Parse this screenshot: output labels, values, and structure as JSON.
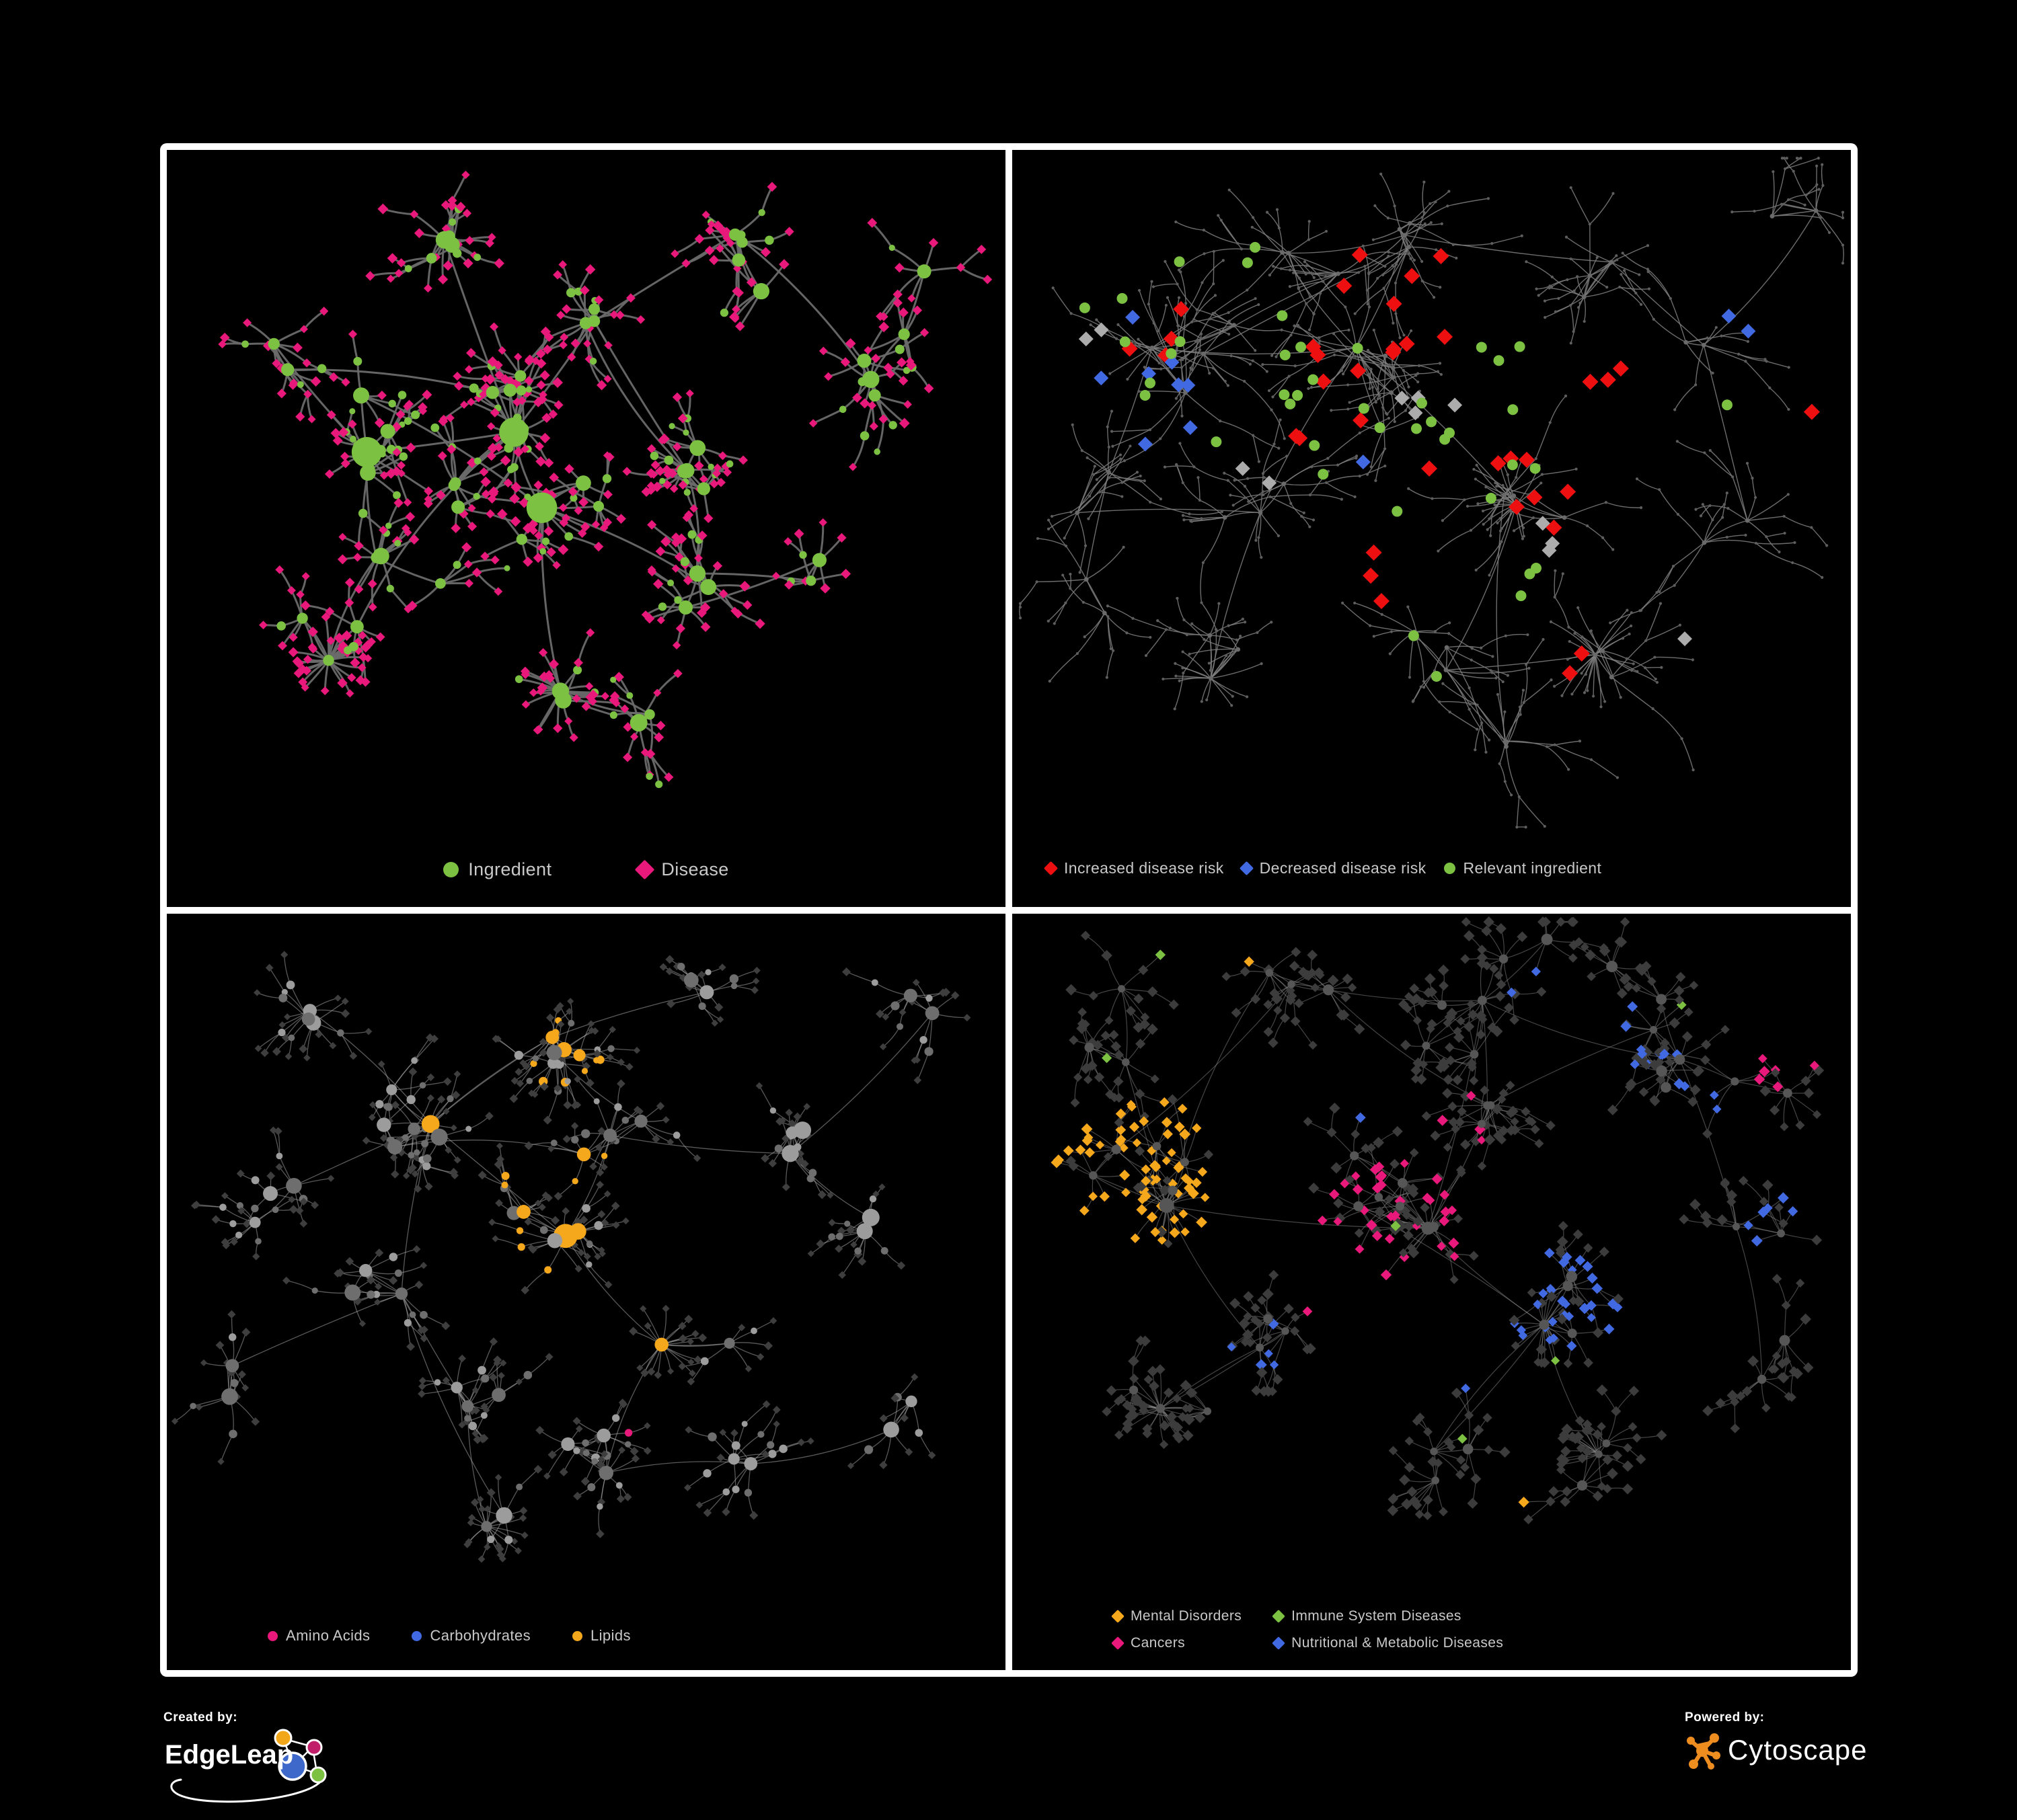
{
  "panels": [
    {
      "id": "ingredient-disease",
      "legend": [
        {
          "label": "Ingredient",
          "shape": "circle",
          "color": "#7CC142"
        },
        {
          "label": "Disease",
          "shape": "diamond",
          "color": "#E9187B"
        }
      ],
      "net": {
        "seed": 20240,
        "style": "bipartite",
        "edge": {
          "color": "#6A6A6A",
          "width": 3,
          "opacity": 0.95
        },
        "palette": {
          "hub": "#7CC142",
          "leaf": "#E9187B"
        },
        "clusters": [
          [
            0.42,
            0.36,
            6,
            1
          ],
          [
            0.24,
            0.4,
            5,
            1
          ],
          [
            0.33,
            0.13,
            4,
            0
          ],
          [
            0.52,
            0.22,
            3,
            0
          ],
          [
            0.7,
            0.16,
            4,
            0
          ],
          [
            0.82,
            0.32,
            3,
            0
          ],
          [
            0.64,
            0.44,
            4,
            0
          ],
          [
            0.49,
            0.52,
            4,
            1
          ],
          [
            0.29,
            0.6,
            3,
            0
          ],
          [
            0.2,
            0.72,
            3,
            2
          ],
          [
            0.47,
            0.78,
            2,
            2
          ],
          [
            0.62,
            0.66,
            3,
            0
          ],
          [
            0.77,
            0.6,
            2,
            0
          ],
          [
            0.55,
            0.88,
            2,
            0
          ],
          [
            0.12,
            0.27,
            2,
            0
          ],
          [
            0.88,
            0.2,
            2,
            0
          ],
          [
            0.35,
            0.47,
            3,
            0
          ]
        ]
      }
    },
    {
      "id": "disease-risk",
      "legend": [
        {
          "label": "Increased disease risk",
          "shape": "diamond",
          "color": "#EE1010"
        },
        {
          "label": "Decreased disease risk",
          "shape": "diamond",
          "color": "#4169E1"
        },
        {
          "label": "Relevant ingredient",
          "shape": "circle",
          "color": "#7CC142"
        }
      ],
      "net": {
        "seed": 777,
        "style": "muted",
        "edge": {
          "color": "#7F7F7F",
          "width": 1.4,
          "opacity": 0.85
        },
        "palette": {
          "node": "#5E5E5E",
          "hub": "#6A6A6A"
        },
        "clusters": [
          [
            0.2,
            0.3,
            5,
            1
          ],
          [
            0.44,
            0.33,
            6,
            1
          ],
          [
            0.6,
            0.5,
            4,
            2
          ],
          [
            0.46,
            0.11,
            4,
            0
          ],
          [
            0.7,
            0.2,
            3,
            0
          ],
          [
            0.86,
            0.27,
            2,
            0
          ],
          [
            0.3,
            0.55,
            3,
            0
          ],
          [
            0.25,
            0.76,
            3,
            2
          ],
          [
            0.5,
            0.7,
            3,
            0
          ],
          [
            0.68,
            0.77,
            3,
            2
          ],
          [
            0.85,
            0.55,
            2,
            0
          ],
          [
            0.1,
            0.5,
            2,
            0
          ],
          [
            0.6,
            0.89,
            2,
            0
          ],
          [
            0.33,
            0.15,
            3,
            0
          ],
          [
            0.9,
            0.1,
            2,
            0
          ],
          [
            0.13,
            0.68,
            2,
            0
          ]
        ],
        "highlights": [
          {
            "shape": "diamond",
            "color": "#EE1010",
            "half": 12,
            "spots": [
              [
                0.45,
                0.3,
                0.1,
                12
              ],
              [
                0.6,
                0.48,
                0.07,
                7
              ],
              [
                0.2,
                0.28,
                0.05,
                4
              ],
              [
                0.47,
                0.18,
                0.04,
                3
              ],
              [
                0.7,
                0.34,
                0.04,
                3
              ],
              [
                0.67,
                0.74,
                0.035,
                2
              ],
              [
                0.44,
                0.6,
                0.04,
                3
              ],
              [
                0.93,
                0.37,
                0.02,
                1
              ],
              [
                0.35,
                0.4,
                0.03,
                2
              ]
            ]
          },
          {
            "shape": "diamond",
            "color": "#4169E1",
            "half": 11,
            "spots": [
              [
                0.16,
                0.31,
                0.05,
                6
              ],
              [
                0.875,
                0.245,
                0.022,
                2
              ],
              [
                0.185,
                0.42,
                0.025,
                2
              ],
              [
                0.42,
                0.46,
                0.02,
                1
              ]
            ]
          },
          {
            "shape": "diamond",
            "color": "#ACACAC",
            "half": 11,
            "spots": [
              [
                0.115,
                0.27,
                0.04,
                2
              ],
              [
                0.5,
                0.36,
                0.05,
                4
              ],
              [
                0.625,
                0.595,
                0.04,
                3
              ],
              [
                0.3,
                0.48,
                0.03,
                2
              ],
              [
                0.79,
                0.73,
                0.015,
                1
              ]
            ]
          },
          {
            "shape": "circle",
            "color": "#7CC142",
            "half": 8,
            "spots": [
              [
                0.35,
                0.3,
                0.15,
                14
              ],
              [
                0.55,
                0.42,
                0.1,
                10
              ],
              [
                0.2,
                0.35,
                0.07,
                5
              ],
              [
                0.625,
                0.625,
                0.03,
                3
              ],
              [
                0.46,
                0.7,
                0.05,
                2
              ],
              [
                0.11,
                0.21,
                0.035,
                2
              ],
              [
                0.84,
                0.35,
                0.02,
                1
              ],
              [
                0.3,
                0.14,
                0.03,
                2
              ],
              [
                0.57,
                0.3,
                0.04,
                3
              ]
            ]
          }
        ]
      }
    },
    {
      "id": "ingredient-classes",
      "legend": [
        {
          "label": "Amino Acids",
          "shape": "circle",
          "color": "#E9187B"
        },
        {
          "label": "Carbohydrates",
          "shape": "circle",
          "color": "#4169E1"
        },
        {
          "label": "Lipids",
          "shape": "circle",
          "color": "#F6A81C"
        }
      ],
      "net": {
        "seed": 4242,
        "style": "classes-circles",
        "edge": {
          "color": "#B2B2B2",
          "width": 1.3,
          "opacity": 0.5
        },
        "palette": {
          "leaf": "#3E3E3E",
          "grayA": "#9C9C9C",
          "grayB": "#6E6E6E"
        },
        "regions": [
          {
            "color": "#F6A81C",
            "spots": [
              [
                0.43,
                0.2,
                0.09,
                0.55
              ],
              [
                0.43,
                0.43,
                0.1,
                0.5
              ],
              [
                0.62,
                0.63,
                0.05,
                0.85
              ],
              [
                0.3,
                0.33,
                0.05,
                0.2
              ],
              [
                0.74,
                0.5,
                0.04,
                0.35
              ],
              [
                0.55,
                0.55,
                0.22,
                0.07
              ],
              [
                0.28,
                0.08,
                0.03,
                0.4
              ],
              [
                0.07,
                0.62,
                0.03,
                0.4
              ]
            ]
          },
          {
            "color": "#4169E1",
            "spots": [
              [
                0.47,
                0.145,
                0.05,
                0.4
              ],
              [
                0.12,
                0.33,
                0.018,
                0.7
              ],
              [
                0.82,
                0.6,
                0.025,
                0.6
              ],
              [
                0.415,
                0.42,
                0.035,
                0.22
              ],
              [
                0.35,
                0.12,
                0.02,
                0.3
              ]
            ]
          },
          {
            "color": "#E9187B",
            "spots": [
              [
                0.3,
                0.72,
                0.025,
                0.8
              ],
              [
                0.52,
                0.62,
                0.028,
                0.6
              ],
              [
                0.56,
                0.76,
                0.035,
                0.55
              ],
              [
                0.85,
                0.73,
                0.028,
                0.6
              ],
              [
                0.9,
                0.295,
                0.025,
                0.6
              ],
              [
                0.055,
                0.45,
                0.02,
                0.7
              ],
              [
                0.25,
                0.2,
                0.02,
                0.35
              ],
              [
                0.35,
                0.055,
                0.02,
                0.6
              ],
              [
                0.95,
                0.14,
                0.02,
                0.55
              ],
              [
                0.65,
                0.88,
                0.025,
                0.45
              ],
              [
                0.45,
                0.295,
                0.03,
                0.18
              ],
              [
                0.12,
                0.18,
                0.02,
                0.3
              ]
            ]
          }
        ],
        "clusters": [
          [
            0.3,
            0.3,
            6,
            1
          ],
          [
            0.44,
            0.19,
            5,
            0
          ],
          [
            0.44,
            0.44,
            5,
            1
          ],
          [
            0.62,
            0.63,
            2,
            2
          ],
          [
            0.25,
            0.52,
            3,
            0
          ],
          [
            0.14,
            0.45,
            3,
            0
          ],
          [
            0.56,
            0.33,
            3,
            0
          ],
          [
            0.74,
            0.34,
            3,
            0
          ],
          [
            0.88,
            0.42,
            2,
            0
          ],
          [
            0.35,
            0.7,
            3,
            0
          ],
          [
            0.52,
            0.78,
            3,
            0
          ],
          [
            0.42,
            0.88,
            2,
            2
          ],
          [
            0.68,
            0.8,
            2,
            0
          ],
          [
            0.85,
            0.72,
            2,
            0
          ],
          [
            0.2,
            0.12,
            3,
            0
          ],
          [
            0.65,
            0.1,
            2,
            0
          ],
          [
            0.9,
            0.15,
            2,
            0
          ],
          [
            0.08,
            0.7,
            2,
            0
          ]
        ]
      }
    },
    {
      "id": "disease-classes",
      "legend": [
        {
          "label": "Mental Disorders",
          "shape": "diamond",
          "color": "#F6A81C"
        },
        {
          "label": "Immune System Diseases",
          "shape": "diamond",
          "color": "#7CC142"
        },
        {
          "label": "Cancers",
          "shape": "diamond",
          "color": "#E9187B"
        },
        {
          "label": "Nutritional & Metabolic Diseases",
          "shape": "diamond",
          "color": "#4169E1"
        }
      ],
      "net": {
        "seed": 909,
        "style": "classes-diamonds",
        "edge": {
          "color": "#9A9A9A",
          "width": 1.2,
          "opacity": 0.45
        },
        "palette": {
          "hub": "#565656",
          "leaf": "#3C3C3C"
        },
        "regions": [
          {
            "color": "#F6A81C",
            "spots": [
              [
                0.16,
                0.37,
                0.11,
                0.8
              ],
              [
                0.27,
                0.25,
                0.06,
                0.3
              ],
              [
                0.085,
                0.5,
                0.04,
                0.45
              ],
              [
                0.3,
                0.075,
                0.035,
                0.35
              ],
              [
                0.6,
                0.87,
                0.025,
                0.5
              ],
              [
                0.78,
                0.62,
                0.018,
                0.55
              ],
              [
                0.45,
                0.04,
                0.02,
                0.4
              ]
            ]
          },
          {
            "color": "#E9187B",
            "spots": [
              [
                0.46,
                0.45,
                0.1,
                0.55
              ],
              [
                0.385,
                0.55,
                0.05,
                0.4
              ],
              [
                0.35,
                0.785,
                0.035,
                0.5
              ],
              [
                0.92,
                0.215,
                0.04,
                0.65
              ],
              [
                0.55,
                0.3,
                0.045,
                0.3
              ],
              [
                0.74,
                0.9,
                0.03,
                0.5
              ],
              [
                0.25,
                0.88,
                0.025,
                0.45
              ],
              [
                0.6,
                0.18,
                0.025,
                0.3
              ]
            ]
          },
          {
            "color": "#4169E1",
            "spots": [
              [
                0.66,
                0.56,
                0.08,
                0.65
              ],
              [
                0.8,
                0.2,
                0.1,
                0.42
              ],
              [
                0.3,
                0.635,
                0.04,
                0.5
              ],
              [
                0.62,
                0.065,
                0.05,
                0.45
              ],
              [
                0.9,
                0.45,
                0.05,
                0.5
              ],
              [
                0.24,
                0.15,
                0.05,
                0.3
              ],
              [
                0.55,
                0.69,
                0.035,
                0.35
              ],
              [
                0.92,
                0.075,
                0.03,
                0.5
              ],
              [
                0.4,
                0.3,
                0.05,
                0.15
              ],
              [
                0.1,
                0.85,
                0.03,
                0.4
              ]
            ]
          },
          {
            "color": "#7CC142",
            "spots": [
              [
                0.5,
                0.45,
                0.6,
                0.012
              ]
            ]
          }
        ],
        "clusters": [
          [
            0.16,
            0.37,
            6,
            3
          ],
          [
            0.45,
            0.42,
            7,
            1
          ],
          [
            0.5,
            0.15,
            4,
            0
          ],
          [
            0.65,
            0.55,
            4,
            2
          ],
          [
            0.8,
            0.2,
            4,
            0
          ],
          [
            0.3,
            0.62,
            3,
            0
          ],
          [
            0.2,
            0.74,
            3,
            2
          ],
          [
            0.5,
            0.8,
            3,
            0
          ],
          [
            0.7,
            0.78,
            3,
            2
          ],
          [
            0.9,
            0.45,
            2,
            0
          ],
          [
            0.92,
            0.23,
            2,
            0
          ],
          [
            0.1,
            0.15,
            3,
            0
          ],
          [
            0.35,
            0.08,
            3,
            0
          ],
          [
            0.62,
            0.07,
            2,
            0
          ],
          [
            0.88,
            0.65,
            2,
            0
          ],
          [
            0.75,
            0.06,
            2,
            0
          ],
          [
            0.57,
            0.3,
            3,
            0
          ]
        ]
      }
    }
  ],
  "footer": {
    "created_by": "Created by:",
    "brand": "EdgeLeap",
    "powered_by": "Powered by:",
    "engine": "Cytoscape",
    "brand_colors": {
      "edgeleap_blue": "#3E68C9",
      "edgeleap_orange": "#F2A71B",
      "edgeleap_magenta": "#C21F6B",
      "edgeleap_green": "#7CC142",
      "cytoscape_orange": "#EE8D1F"
    }
  }
}
